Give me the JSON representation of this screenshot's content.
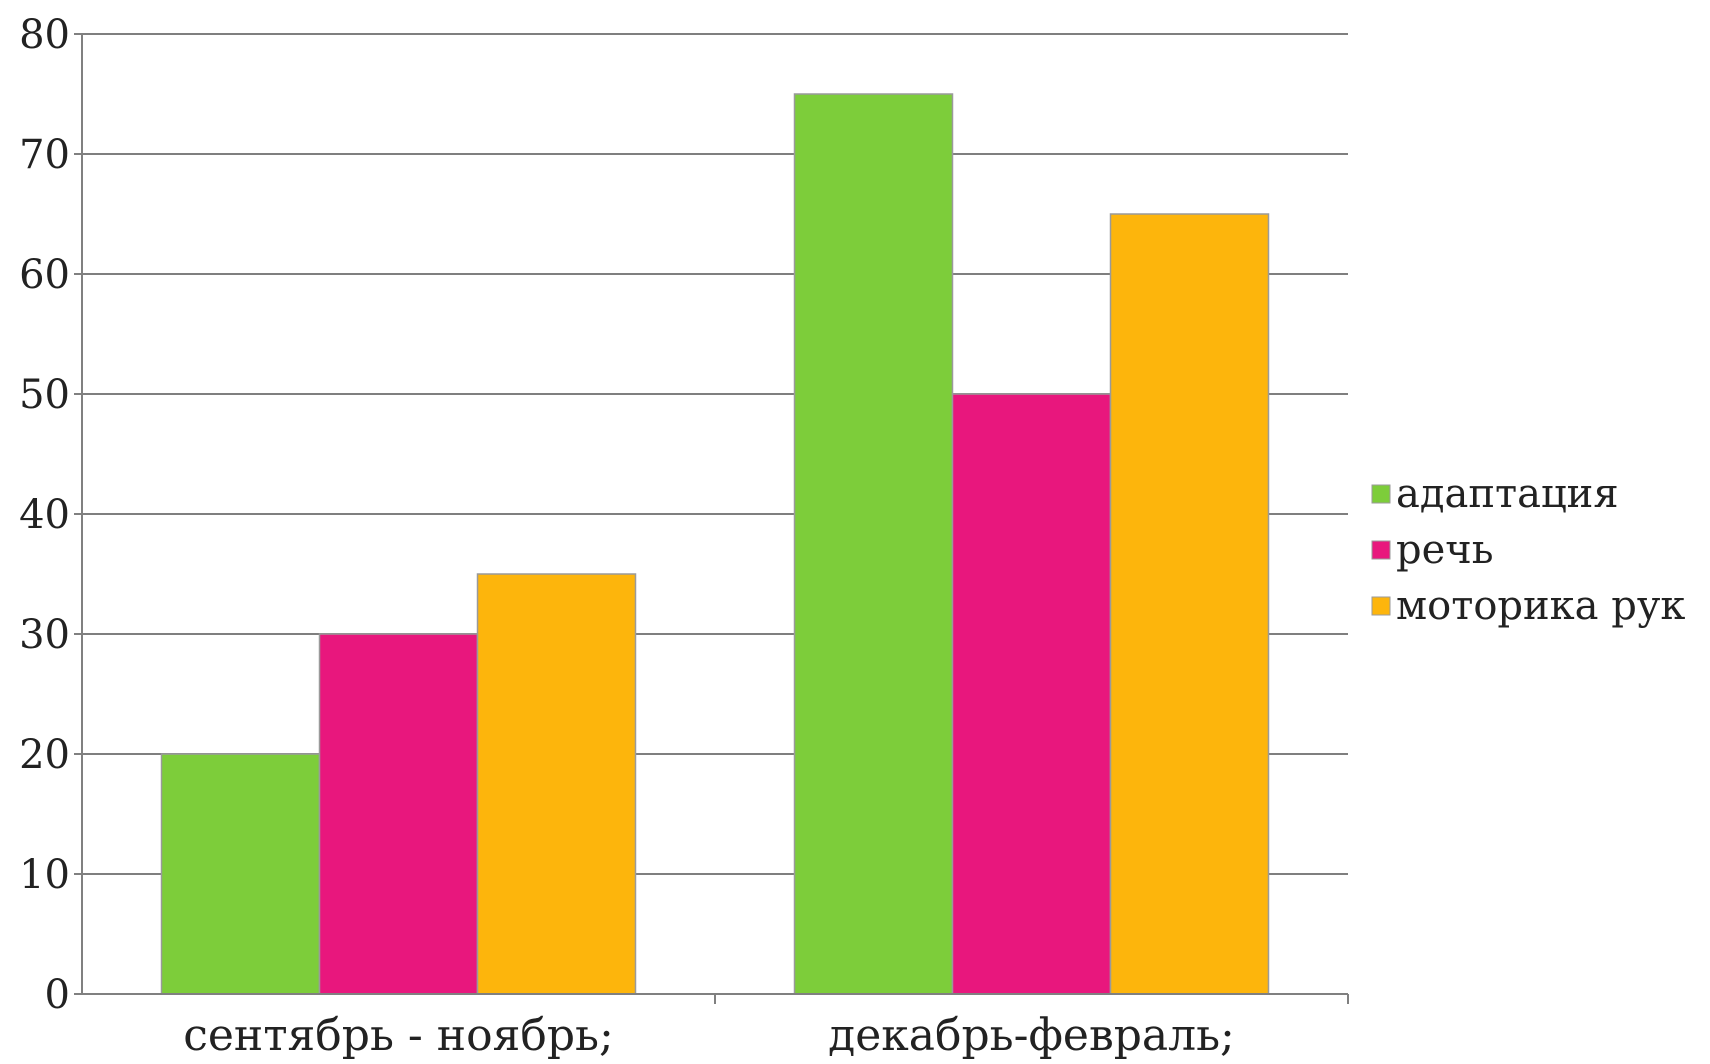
{
  "chart_data": {
    "type": "bar",
    "categories": [
      "сентябрь - ноябрь;",
      "декабрь-февраль;"
    ],
    "series": [
      {
        "name": "адаптация",
        "values": [
          20,
          75
        ],
        "color": "#7dcd3a"
      },
      {
        "name": "речь",
        "values": [
          30,
          50
        ],
        "color": "#e8177d"
      },
      {
        "name": "моторика рук",
        "values": [
          35,
          65
        ],
        "color": "#fdb50c"
      }
    ],
    "ylim": [
      0,
      80
    ],
    "yticks": [
      0,
      10,
      20,
      30,
      40,
      50,
      60,
      70,
      80
    ],
    "grid": true,
    "legend": "right"
  }
}
